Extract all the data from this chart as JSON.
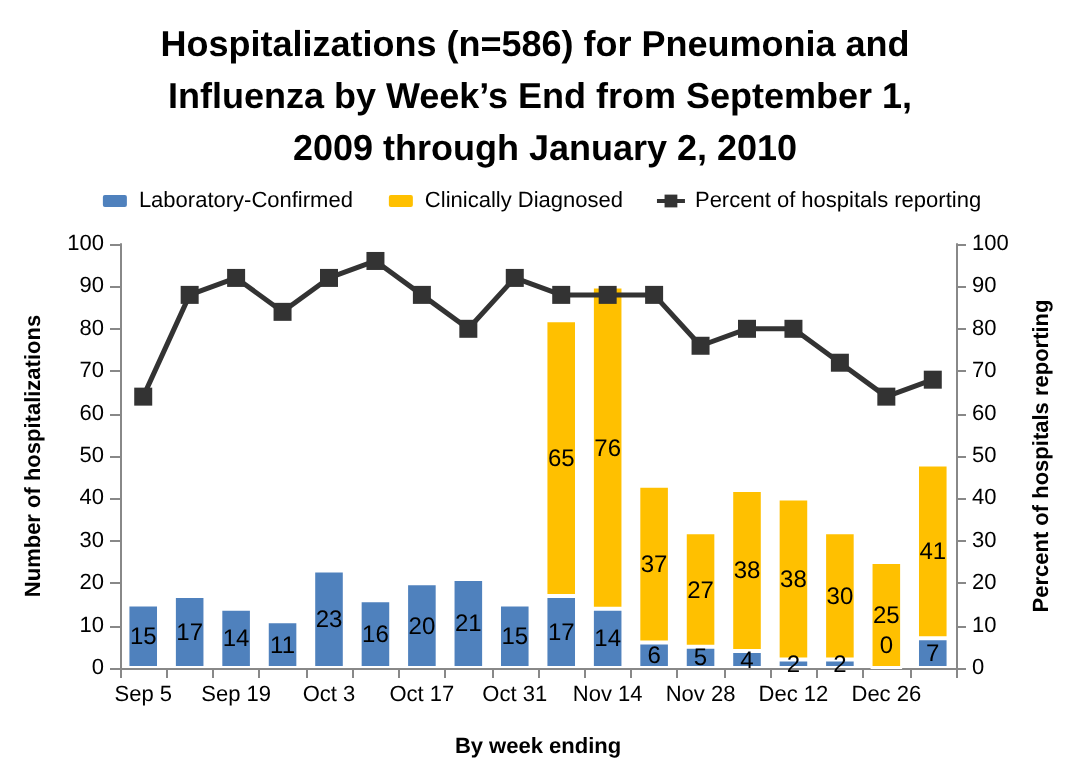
{
  "chart_data": {
    "type": "bar",
    "title": "Hospitalizations (n=586) for Pneumonia and Influenza by Week’s End from September 1, 2009 through January 2, 2010",
    "xlabel": "By week ending",
    "ylabel": "Number of hospitalizations",
    "y2label": "Percent of hospitals reporting",
    "categories": [
      "Sep 5",
      null,
      "Sep 19",
      null,
      "Oct 3",
      null,
      "Oct 17",
      null,
      "Oct 31",
      null,
      "Nov 14",
      null,
      "Nov 28",
      null,
      "Dec 12",
      null,
      "Dec 26",
      null
    ],
    "stacked": true,
    "legend": "top",
    "grid": false,
    "series": [
      {
        "name": "Laboratory-Confirmed",
        "color": "#4f81bd",
        "values": [
          15,
          17,
          14,
          11,
          23,
          16,
          20,
          21,
          15,
          17,
          14,
          6,
          5,
          4,
          2,
          2,
          0,
          7
        ],
        "value_labels": [
          "15",
          "17",
          "14",
          "11",
          "23",
          "16",
          "20",
          "21",
          "15",
          "17",
          "14",
          "6",
          "5",
          "4",
          "2",
          "2",
          "0",
          "7"
        ]
      },
      {
        "name": "Clinically Diagnosed",
        "color": "#ffc000",
        "values": [
          null,
          null,
          null,
          null,
          null,
          null,
          null,
          null,
          null,
          65,
          76,
          37,
          27,
          38,
          38,
          30,
          25,
          41
        ],
        "value_labels": [
          null,
          null,
          null,
          null,
          null,
          null,
          null,
          null,
          null,
          "65",
          "76",
          "37",
          "27",
          "38",
          "38",
          "30",
          "25",
          "41"
        ]
      },
      {
        "name": "Percent of hospitals reporting",
        "type": "line",
        "axis": "y2",
        "marker": "square",
        "color": "#333333",
        "values": [
          64,
          88,
          92,
          84,
          92,
          96,
          88,
          80,
          92,
          88,
          88,
          88,
          76,
          80,
          80,
          72,
          64,
          68
        ]
      }
    ],
    "ylim": [
      0,
      100
    ],
    "yticks": [
      0,
      10,
      20,
      30,
      40,
      50,
      60,
      70,
      80,
      90,
      100
    ],
    "y2lim": [
      0,
      100
    ],
    "y2ticks": [
      0,
      10,
      20,
      30,
      40,
      50,
      60,
      70,
      80,
      90,
      100
    ]
  }
}
